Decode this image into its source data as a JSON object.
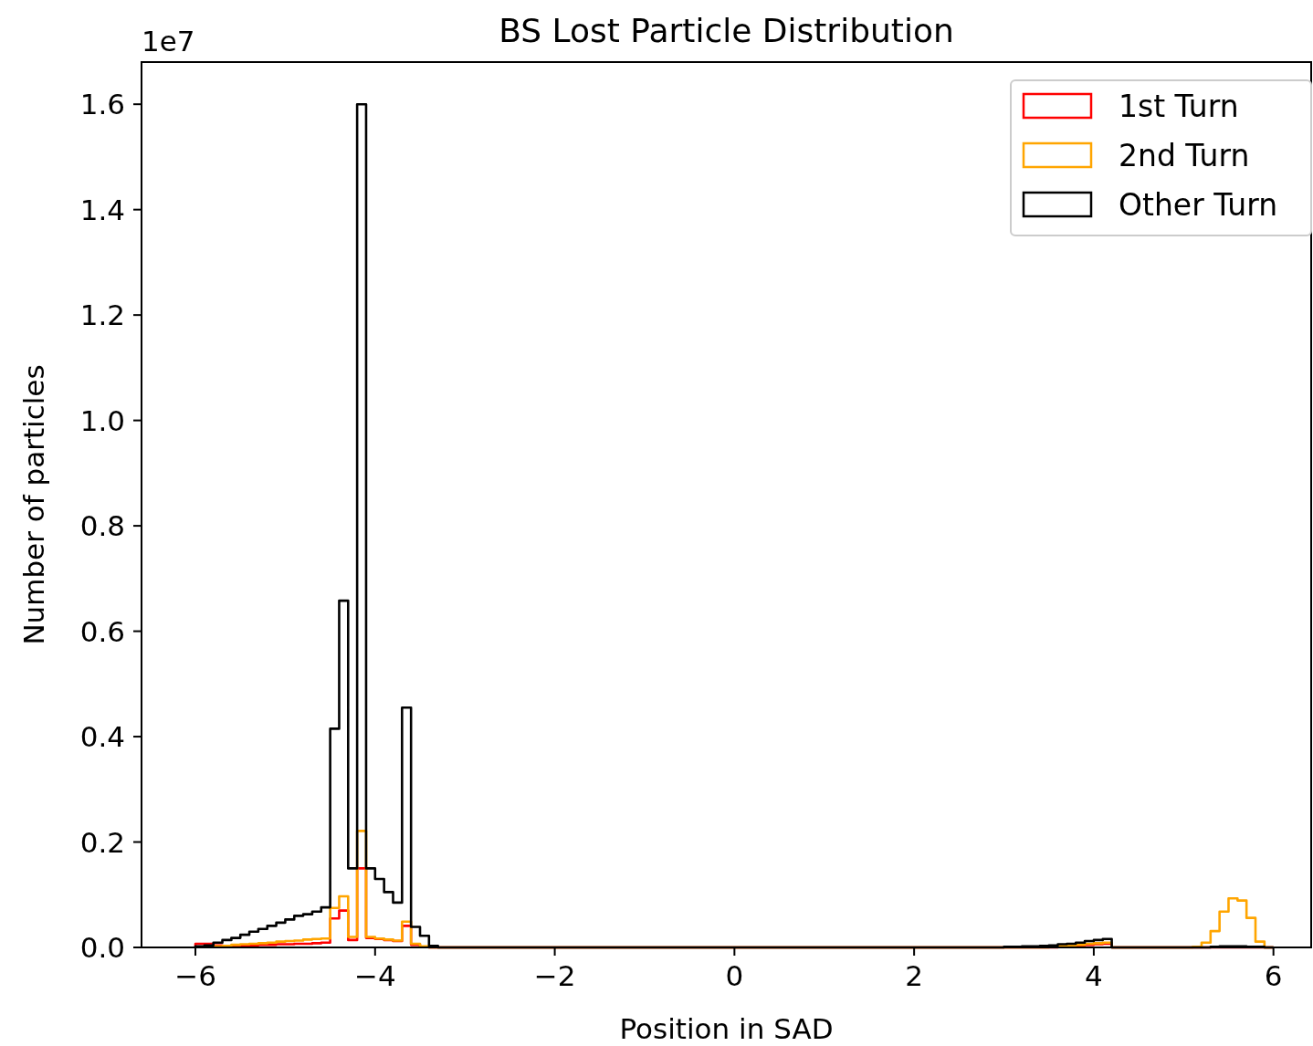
{
  "chart_data": {
    "type": "histogram",
    "title": "BS Lost Particle Distribution",
    "xlabel": "Position in SAD",
    "ylabel": "Number of particles",
    "annotations": [
      "1e7"
    ],
    "legend": "top right",
    "xlim": [
      -6.6,
      6.42
    ],
    "ylim": [
      0,
      1.68
    ],
    "xticks": [
      {
        "value": -6,
        "label": "−6"
      },
      {
        "value": -4,
        "label": "−4"
      },
      {
        "value": -2,
        "label": "−2"
      },
      0,
      2,
      4,
      6
    ],
    "yticks": [
      {
        "value": 0,
        "label": "0.0"
      },
      0.2,
      0.4,
      0.6,
      0.8,
      {
        "value": 1,
        "label": "1.0"
      },
      1.2,
      1.4,
      1.6
    ],
    "bins": [
      -6,
      -5.9,
      -5.8,
      -5.7,
      -5.6,
      -5.5,
      -5.4,
      -5.3,
      -5.2,
      -5.1,
      -5,
      -4.9,
      -4.8,
      -4.7,
      -4.6,
      -4.5,
      -4.4,
      -4.3,
      -4.2,
      -4.1,
      -4,
      -3.9,
      -3.8,
      -3.7,
      -3.6,
      -3.5,
      -3.4,
      -3.3,
      -3.2,
      -3.1,
      -3,
      -2.9,
      -2.8,
      -2.7,
      -2.6,
      -2.5,
      -2.4,
      -2.3,
      -2.2,
      -2.1,
      -2,
      -1.9,
      -1.8,
      -1.7,
      -1.6,
      -1.5,
      -1.4,
      -1.3,
      -1.2,
      -1.1,
      -1,
      -0.9,
      -0.8,
      -0.7,
      -0.6,
      -0.5,
      -0.4,
      -0.3,
      -0.2,
      -0.1,
      0,
      0.1,
      0.2,
      0.3,
      0.4,
      0.5,
      0.6,
      0.7,
      0.8,
      0.9,
      1,
      1.1,
      1.2,
      1.3,
      1.4,
      1.5,
      1.6,
      1.7,
      1.8,
      1.9,
      2,
      2.1,
      2.2,
      2.3,
      2.4,
      2.5,
      2.6,
      2.7,
      2.8,
      2.9,
      3,
      3.1,
      3.2,
      3.3,
      3.4,
      3.5,
      3.6,
      3.7,
      3.8,
      3.9,
      4,
      4.1,
      4.2,
      4.3,
      4.4,
      4.5,
      4.6,
      4.7,
      4.8,
      4.9,
      5,
      5.1,
      5.2,
      5.3,
      5.4,
      5.5,
      5.6,
      5.7,
      5.8,
      5.9,
      6
    ],
    "series": [
      {
        "name": "1st Turn",
        "color": "#ff0000",
        "values": [
          0.007,
          0.007,
          0.004,
          0.003,
          0.003,
          0.004,
          0.004,
          0.005,
          0.005,
          0.006,
          0.006,
          0.007,
          0.007,
          0.008,
          0.009,
          0.055,
          0.07,
          0.014,
          0.15,
          0.018,
          0.016,
          0.014,
          0.012,
          0.041,
          0.005,
          0.001,
          0,
          0,
          0,
          0,
          0,
          0,
          0,
          0,
          0,
          0,
          0,
          0,
          0,
          0,
          0,
          0,
          0,
          0,
          0,
          0,
          0,
          0,
          0,
          0,
          0,
          0,
          0,
          0,
          0,
          0,
          0,
          0,
          0,
          0,
          0,
          0,
          0,
          0,
          0,
          0,
          0,
          0,
          0,
          0,
          0,
          0,
          0,
          0,
          0,
          0,
          0,
          0,
          0,
          0,
          0,
          0,
          0,
          0,
          0,
          0,
          0,
          0,
          0,
          0,
          0,
          0,
          0,
          0,
          0,
          0,
          0.002,
          0.003,
          0.004,
          0.005,
          0.006,
          0.007,
          0,
          0,
          0,
          0,
          0,
          0,
          0,
          0,
          0,
          0,
          0,
          0,
          0,
          0,
          0,
          0,
          0,
          0
        ]
      },
      {
        "name": "2nd Turn",
        "color": "#ffa500",
        "values": [
          0.001,
          0.002,
          0.002,
          0.003,
          0.005,
          0.006,
          0.007,
          0.008,
          0.009,
          0.011,
          0.012,
          0.013,
          0.015,
          0.016,
          0.017,
          0.075,
          0.097,
          0.02,
          0.221,
          0.02,
          0.017,
          0.015,
          0.013,
          0.049,
          0.007,
          0.002,
          0,
          0,
          0,
          0,
          0,
          0,
          0,
          0,
          0,
          0,
          0,
          0,
          0,
          0,
          0,
          0,
          0,
          0,
          0,
          0,
          0,
          0,
          0,
          0,
          0,
          0,
          0,
          0,
          0,
          0,
          0,
          0,
          0,
          0,
          0,
          0,
          0,
          0,
          0,
          0,
          0,
          0,
          0,
          0,
          0,
          0,
          0,
          0,
          0,
          0,
          0,
          0,
          0,
          0,
          0,
          0,
          0,
          0,
          0,
          0,
          0,
          0,
          0,
          0,
          0,
          0,
          0,
          0,
          0,
          0.002,
          0.003,
          0.004,
          0.005,
          0.007,
          0.008,
          0.009,
          0,
          0,
          0,
          0,
          0,
          0,
          0,
          0,
          0,
          0.001,
          0.009,
          0.031,
          0.068,
          0.093,
          0.089,
          0.056,
          0.011,
          0
        ]
      },
      {
        "name": "Other Turn",
        "color": "#000000",
        "values": [
          0.002,
          0.004,
          0.009,
          0.014,
          0.018,
          0.024,
          0.03,
          0.035,
          0.041,
          0.047,
          0.053,
          0.06,
          0.063,
          0.068,
          0.076,
          0.415,
          0.658,
          0.15,
          1.6,
          0.15,
          0.13,
          0.105,
          0.085,
          0.455,
          0.039,
          0.022,
          0.003,
          0,
          0,
          0,
          0,
          0,
          0,
          0,
          0,
          0,
          0,
          0,
          0,
          0,
          0,
          0,
          0,
          0,
          0,
          0,
          0,
          0,
          0,
          0,
          0,
          0,
          0,
          0,
          0,
          0,
          0,
          0,
          0,
          0,
          0,
          0,
          0,
          0,
          0,
          0,
          0,
          0,
          0,
          0,
          0,
          0,
          0,
          0,
          0,
          0,
          0,
          0,
          0,
          0,
          0,
          0,
          0,
          0,
          0,
          0,
          0,
          0,
          0,
          0,
          0.001,
          0.001,
          0.002,
          0.002,
          0.003,
          0.004,
          0.006,
          0.007,
          0.009,
          0.012,
          0.014,
          0.016,
          0,
          0,
          0,
          0,
          0,
          0,
          0,
          0,
          0,
          0,
          0,
          0.001,
          0.002,
          0.002,
          0.002,
          0.001,
          0.001,
          0
        ]
      }
    ]
  }
}
